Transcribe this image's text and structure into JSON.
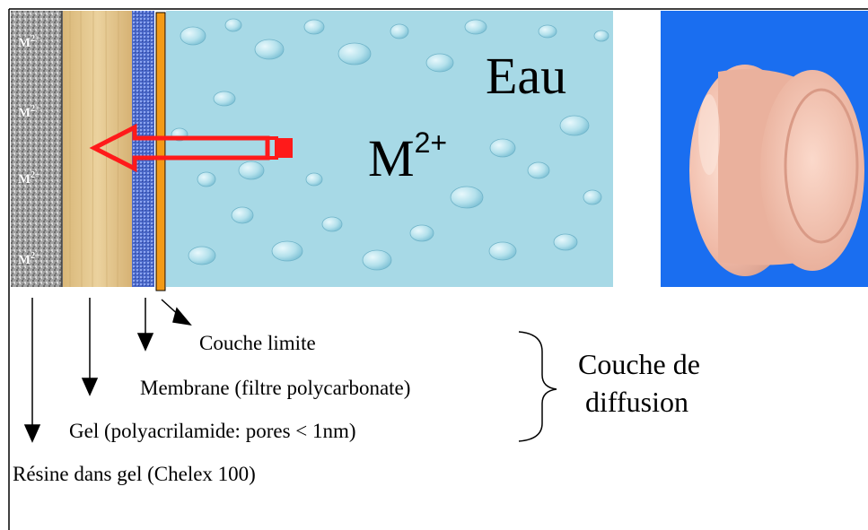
{
  "resin_ions": [
    {
      "base": "M",
      "charge": "2+"
    },
    {
      "base": "M",
      "charge": "2+"
    },
    {
      "base": "M",
      "charge": "2+"
    },
    {
      "base": "M",
      "charge": "2+"
    }
  ],
  "water_label": "Eau",
  "water_ion": {
    "base": "M",
    "charge": "2+"
  },
  "labels": {
    "boundary_layer": "Couche limite",
    "membrane": "Membrane (filtre polycarbonate)",
    "gel": "Gel (polyacrilamide: pores < 1nm)",
    "resin": "Résine dans gel (Chelex 100)",
    "diffusion_layer_line1": "Couche de",
    "diffusion_layer_line2": "diffusion"
  },
  "colors": {
    "resin": "#9a9a9a",
    "gel": "#e2c38c",
    "membrane": "#4f6fd1",
    "boundary": "#f29a1a",
    "water": "#a9dbe8",
    "arrow": "#ff1a1a",
    "photo_background": "#1a6ef0",
    "device": "#f2c8b8"
  }
}
